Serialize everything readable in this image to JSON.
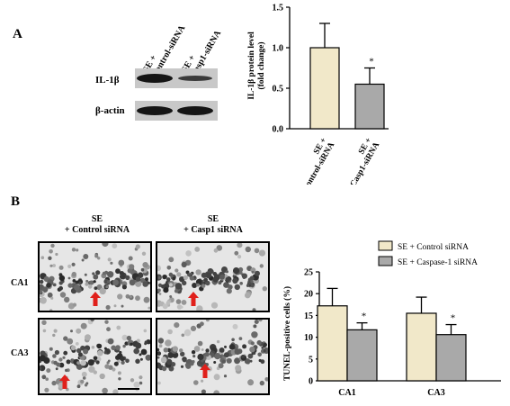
{
  "panel_a": {
    "letter": "A",
    "blot": {
      "lane_labels": [
        [
          "SE +",
          "Control-siRNA"
        ],
        [
          "SE +",
          "Casp1-siRNA"
        ]
      ],
      "rows": [
        {
          "label": "IL-1β",
          "band_intensity": [
            1.0,
            0.45
          ]
        },
        {
          "label": "β-actin",
          "band_intensity": [
            1.0,
            1.0
          ]
        }
      ]
    }
  },
  "panel_b": {
    "letter": "B",
    "column_headers": [
      [
        "SE",
        "+ Control  siRNA"
      ],
      [
        "SE",
        "+ Casp1 siRNA"
      ]
    ],
    "row_labels": [
      "CA1",
      "CA3"
    ]
  },
  "colors": {
    "control": "#f1e8c9",
    "treatment": "#a9a9a9"
  },
  "chart_data": [
    {
      "type": "bar",
      "ylabel_lines": [
        "IL-1β  protein level",
        "(fold change)"
      ],
      "categories": [
        [
          "SE +",
          "Control-siRNA"
        ],
        [
          "SE +",
          "Casp1-siRNA"
        ]
      ],
      "values": [
        1.0,
        0.55
      ],
      "errors": [
        0.3,
        0.2
      ],
      "ylim": [
        0,
        1.5
      ],
      "yticks": [
        "0.0",
        "0.5",
        "1.0",
        "1.5"
      ],
      "significance": [
        "",
        "*"
      ]
    },
    {
      "type": "bar",
      "ylabel": "TUNEL-positive cells (%)",
      "categories": [
        "CA1",
        "CA3"
      ],
      "series": [
        {
          "name": "SE + Control siRNA",
          "values": [
            17.2,
            15.5
          ],
          "errors": [
            4.0,
            3.7
          ]
        },
        {
          "name": "SE + Caspase-1 siRNA",
          "values": [
            11.7,
            10.6
          ],
          "errors": [
            1.6,
            2.3
          ]
        }
      ],
      "ylim": [
        0,
        25
      ],
      "yticks": [
        "0",
        "5",
        "10",
        "15",
        "20",
        "25"
      ],
      "significance": [
        [
          "",
          "*"
        ],
        [
          "",
          "*"
        ]
      ],
      "legend_position": "top-right"
    }
  ]
}
